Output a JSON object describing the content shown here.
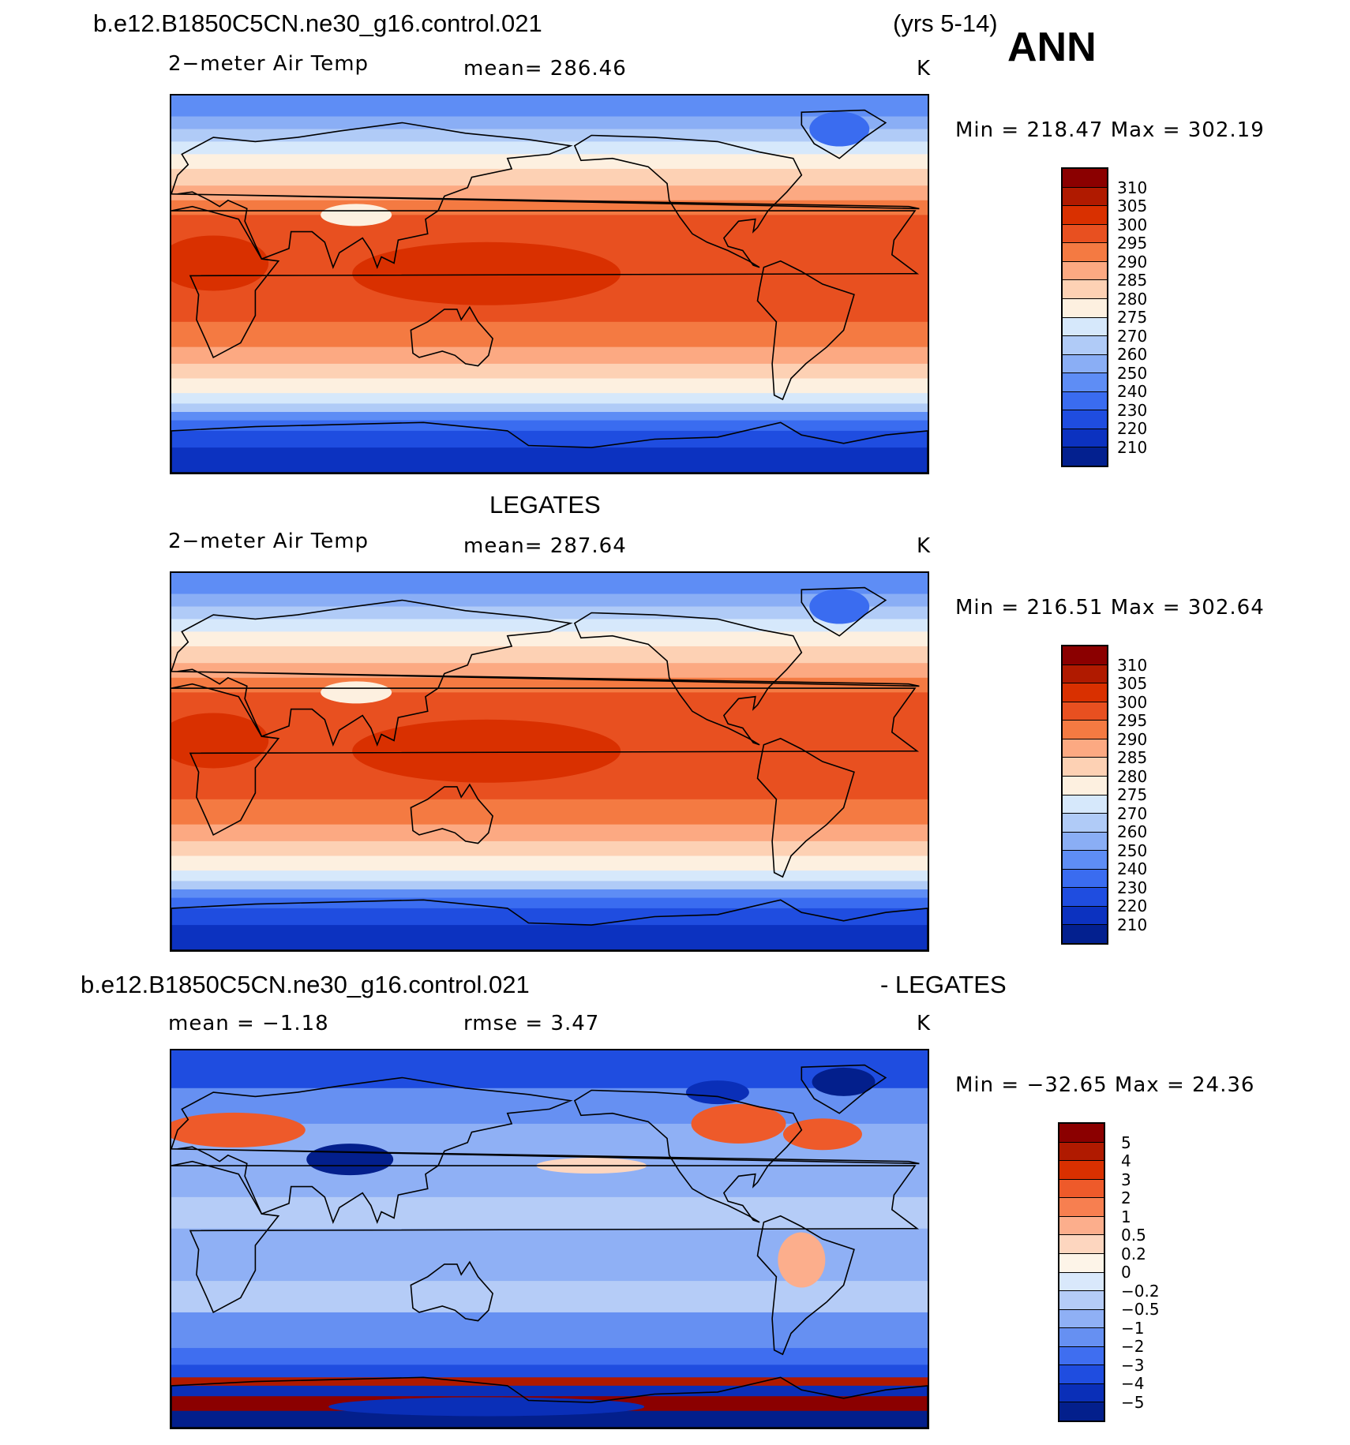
{
  "header": {
    "case_name": "b.e12.B1850C5CN.ne30_g16.control.021",
    "years": "(yrs 5-14)",
    "season": "ANN"
  },
  "panels": [
    {
      "title": "",
      "variable": "2−meter Air Temp",
      "stat": "mean=  286.46",
      "units": "K",
      "minmax": "Min  =  218.47  Max  =  302.19",
      "colorbar_labels": [
        "310",
        "305",
        "300",
        "295",
        "290",
        "285",
        "280",
        "275",
        "270",
        "260",
        "250",
        "240",
        "230",
        "220",
        "210"
      ]
    },
    {
      "title": "LEGATES",
      "variable": "2−meter Air Temp",
      "stat": "mean=  287.64",
      "units": "K",
      "minmax": "Min  =  216.51  Max  =  302.64",
      "colorbar_labels": [
        "310",
        "305",
        "300",
        "295",
        "290",
        "285",
        "280",
        "275",
        "270",
        "260",
        "250",
        "240",
        "230",
        "220",
        "210"
      ]
    },
    {
      "title_left": "b.e12.B1850C5CN.ne30_g16.control.021",
      "title_right": "- LEGATES",
      "variable": "mean  =   −1.18",
      "stat": "rmse  =     3.47",
      "units": "K",
      "minmax": "Min  =  −32.65  Max  =    24.36",
      "colorbar_labels": [
        "5",
        "4",
        "3",
        "2",
        "1",
        "0.5",
        "0.2",
        "0",
        "−0.2",
        "−0.5",
        "−1",
        "−2",
        "−3",
        "−4",
        "−5"
      ]
    }
  ],
  "colors": {
    "temp_scale": [
      "#8b0000",
      "#b01a00",
      "#d93000",
      "#e85020",
      "#f47a42",
      "#fca982",
      "#fdd1b4",
      "#fdf0e0",
      "#d6e8fb",
      "#b0cbf7",
      "#8aaef5",
      "#5e8df5",
      "#3a6cf0",
      "#1f4de0",
      "#0c32c0",
      "#03208f"
    ],
    "diff_scale": [
      "#8b0000",
      "#b01a00",
      "#d93000",
      "#ee5a2a",
      "#f77f50",
      "#fcae8c",
      "#fdd6bf",
      "#fdf4e8",
      "#d9e8fb",
      "#b5ccf7",
      "#8fb0f5",
      "#6690f2",
      "#3f6ef0",
      "#1f4de0",
      "#0a2fb8",
      "#031f8c"
    ]
  }
}
